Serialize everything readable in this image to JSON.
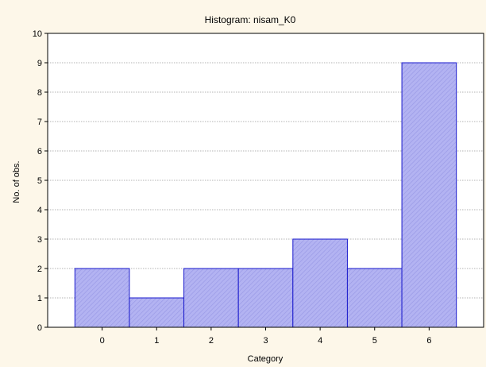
{
  "chart_data": {
    "type": "bar",
    "title": "Histogram: nisam_K0",
    "xlabel": "Category",
    "ylabel": "No. of obs.",
    "categories": [
      "0",
      "1",
      "2",
      "3",
      "4",
      "5",
      "6"
    ],
    "values": [
      2,
      1,
      2,
      2,
      3,
      2,
      9
    ],
    "ylim": [
      0,
      10
    ],
    "yticks": [
      "0",
      "1",
      "2",
      "3",
      "4",
      "5",
      "6",
      "7",
      "8",
      "9",
      "10"
    ],
    "grid": "horizontal dotted",
    "legend": "none",
    "colors": {
      "background": "#fdf7e9",
      "plot_area": "#ffffff",
      "bar_fill": "#b3b3f2",
      "bar_hatch": "#9a9ae6",
      "bar_edge": "#1a1acc",
      "grid": "#9a9a9a",
      "axis": "#000000"
    }
  }
}
